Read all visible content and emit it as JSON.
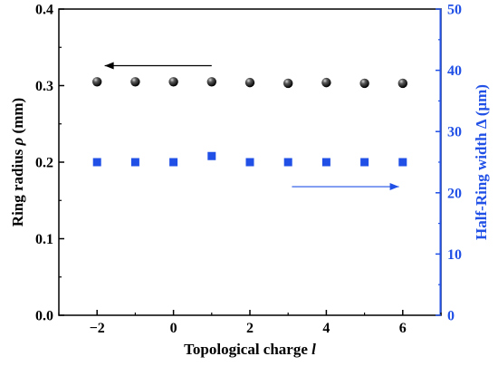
{
  "chart_data": {
    "type": "scatter",
    "xlabel": "Topological charge",
    "xlabel_var": "l",
    "ylabel_left": "Ring radius",
    "ylabel_left_var": "ρ",
    "ylabel_left_unit": "(mm)",
    "ylabel_right": "Half-Ring width Δ (μm)",
    "xlim": [
      -3,
      7
    ],
    "ylim_left": [
      0.0,
      0.4
    ],
    "ylim_right": [
      0,
      50
    ],
    "xticks": [
      -2,
      0,
      2,
      4,
      6
    ],
    "xtick_labels": [
      "−2",
      "0",
      "2",
      "4",
      "6"
    ],
    "yticks_left": [
      0.0,
      0.1,
      0.2,
      0.3,
      0.4
    ],
    "ytick_labels_left": [
      "0.0",
      "0.1",
      "0.2",
      "0.3",
      "0.4"
    ],
    "yticks_right": [
      0,
      10,
      20,
      30,
      40,
      50
    ],
    "ytick_labels_right": [
      "0",
      "10",
      "20",
      "30",
      "40",
      "50"
    ],
    "grid": false,
    "series": [
      {
        "axis": "left",
        "marker": "sphere",
        "color": "#000000",
        "x": [
          -2,
          -1,
          0,
          1,
          2,
          3,
          4,
          5,
          6
        ],
        "y": [
          0.305,
          0.305,
          0.305,
          0.305,
          0.304,
          0.303,
          0.304,
          0.303,
          0.303
        ]
      },
      {
        "axis": "right",
        "marker": "square",
        "color": "#2050e6",
        "x": [
          -2,
          -1,
          0,
          1,
          2,
          3,
          4,
          5,
          6
        ],
        "y": [
          25,
          25,
          25,
          26,
          25,
          25,
          25,
          25,
          25
        ]
      }
    ],
    "arrows": [
      {
        "direction": "left",
        "color": "#000000",
        "x_from": 1.0,
        "x_to": -1.8,
        "y_left": 0.326
      },
      {
        "direction": "right",
        "color": "#2050e6",
        "x_from": 3.1,
        "x_to": 5.9,
        "y_left": 0.168
      }
    ]
  }
}
